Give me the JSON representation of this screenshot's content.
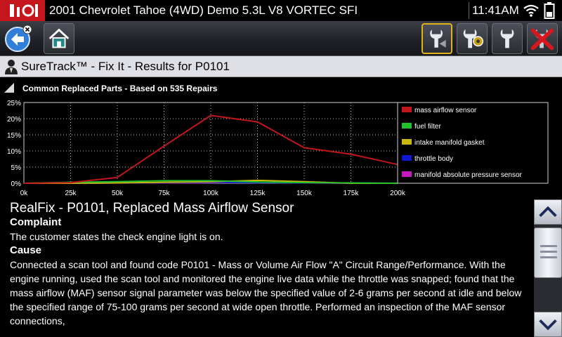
{
  "status_bar": {
    "vehicle": "2001 Chevrolet Tahoe (4WD) Demo 5.3L V8 VORTEC SFI",
    "time": "11:41AM",
    "icons": [
      "app-logo-icon",
      "wifi-icon",
      "battery-icon"
    ]
  },
  "toolbar": {
    "buttons": [
      "back-button",
      "home-button",
      "sensor-button",
      "settings-button",
      "tools-button",
      "exit-button"
    ],
    "active_button": "sensor-button",
    "accent_color": "#e2b318"
  },
  "header": {
    "title": "SureTrack™ - Fix It - Results for P0101"
  },
  "section": {
    "title": "Common Replaced Parts - Based on 535 Repairs"
  },
  "chart_data": {
    "type": "line",
    "x": [
      0,
      25000,
      50000,
      75000,
      100000,
      125000,
      150000,
      175000,
      200000
    ],
    "x_tick_labels": [
      "0k",
      "25k",
      "50k",
      "75k",
      "100k",
      "125k",
      "150k",
      "175k",
      "200k"
    ],
    "y_tick_labels": [
      "0%",
      "5%",
      "10%",
      "15%",
      "20%",
      "25%"
    ],
    "xlim": [
      0,
      200000
    ],
    "ylim": [
      0,
      25
    ],
    "grid": true,
    "legend_position": "right",
    "series": [
      {
        "name": "mass airflow sensor",
        "color": "#c0161c",
        "values": [
          0,
          0.2,
          1.8,
          11.5,
          21,
          19,
          11,
          9,
          5.8
        ]
      },
      {
        "name": "fuel filter",
        "color": "#22c02a",
        "values": [
          0,
          0.3,
          0.5,
          0.8,
          0.8,
          0.4,
          0.2,
          0.1,
          0
        ]
      },
      {
        "name": "intake manifold gasket",
        "color": "#c8b80e",
        "values": [
          0,
          0,
          0.1,
          0.3,
          0.5,
          0.9,
          0.5,
          0,
          0
        ]
      },
      {
        "name": "throttle body",
        "color": "#1018d0",
        "values": [
          0,
          0,
          0.1,
          0.2,
          0.3,
          0.2,
          0.1,
          0.1,
          0
        ]
      },
      {
        "name": "manifold absolute pressure sensor",
        "color": "#c818c0",
        "values": [
          0,
          0,
          0.1,
          0.1,
          0.2,
          0.3,
          0.1,
          0,
          0
        ]
      }
    ]
  },
  "realfix": {
    "title": "RealFix - P0101, Replaced Mass Airflow Sensor",
    "complaint_label": "Complaint",
    "complaint_text": "The customer states the check engine light is on.",
    "cause_label": "Cause",
    "cause_text": "Connected a scan tool and found code P0101 - Mass or Volume Air Flow \"A\" Circuit Range/Performance. With the engine running, used the scan tool and monitored the engine live data while the throttle was snapped; found that the mass airflow (MAF) sensor signal parameter was below the specified value of 2-6 grams per second at idle and below the specified range of 75-100 grams per second at wide open throttle. Performed an inspection of the MAF sensor connections,"
  },
  "scrollbar": {
    "icons": [
      "chevron-up-icon",
      "chevron-down-icon"
    ]
  }
}
